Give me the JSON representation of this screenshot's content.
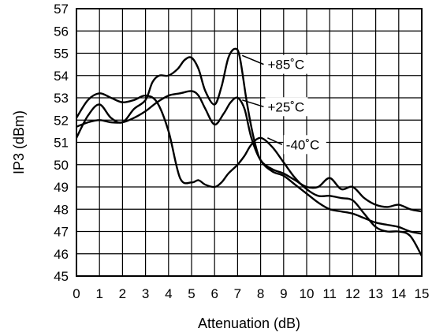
{
  "chart_data": {
    "type": "line",
    "title": "",
    "xlabel": "Attenuation (dB)",
    "ylabel": "IP3 (dBm)",
    "xlim": [
      0,
      15
    ],
    "ylim": [
      45,
      57
    ],
    "x_ticks": [
      "0",
      "1",
      "2",
      "3",
      "4",
      "5",
      "6",
      "7",
      "8",
      "9",
      "10",
      "11",
      "12",
      "13",
      "14",
      "15"
    ],
    "y_ticks": [
      "45",
      "46",
      "47",
      "48",
      "49",
      "50",
      "51",
      "52",
      "53",
      "54",
      "55",
      "56",
      "57"
    ],
    "grid": true,
    "series": [
      {
        "name": "+85˚C",
        "x": [
          0,
          0.5,
          1,
          1.5,
          2,
          2.5,
          3,
          3.3,
          3.6,
          4,
          4.4,
          4.7,
          5,
          5.3,
          5.6,
          6,
          6.3,
          6.6,
          6.9,
          7.1,
          7.4,
          7.7,
          8,
          8.5,
          9,
          9.5,
          10,
          10.5,
          11,
          11.5,
          12,
          12.5,
          13,
          13.5,
          14,
          14.5,
          15
        ],
        "y": [
          51.2,
          52.2,
          52.7,
          52.1,
          51.9,
          52.5,
          52.9,
          53.7,
          54.0,
          54.0,
          54.3,
          54.7,
          54.8,
          54.3,
          53.3,
          52.7,
          53.5,
          54.8,
          55.2,
          54.8,
          52.8,
          51.2,
          50.2,
          49.7,
          49.5,
          49.1,
          48.7,
          48.3,
          48.0,
          47.9,
          47.8,
          47.6,
          47.4,
          47.3,
          47.2,
          47.0,
          46.9
        ]
      },
      {
        "name": "+25˚C",
        "x": [
          0,
          0.5,
          1,
          1.5,
          2,
          2.5,
          3,
          3.5,
          4,
          4.5,
          5,
          5.3,
          5.6,
          6,
          6.3,
          6.6,
          7,
          7.3,
          7.6,
          8,
          8.5,
          9,
          9.5,
          10,
          10.5,
          11,
          11.5,
          12,
          12.5,
          13,
          13.5,
          14,
          14.5,
          15
        ],
        "y": [
          52.1,
          52.9,
          53.2,
          53.0,
          52.8,
          52.9,
          53.1,
          52.8,
          51.5,
          49.4,
          49.2,
          49.3,
          49.1,
          49.0,
          49.2,
          49.6,
          50.0,
          50.4,
          50.9,
          51.2,
          50.8,
          50.1,
          49.4,
          48.9,
          48.6,
          48.6,
          48.5,
          48.4,
          47.8,
          47.2,
          47.0,
          47.0,
          46.8,
          45.9
        ]
      },
      {
        "name": "-40˚C",
        "x": [
          0,
          0.5,
          1,
          1.5,
          2,
          2.5,
          3,
          3.5,
          4,
          4.5,
          5,
          5.3,
          5.6,
          6,
          6.4,
          6.7,
          7,
          7.3,
          7.6,
          8,
          8.5,
          9,
          9.5,
          10,
          10.5,
          11,
          11.5,
          12,
          12.5,
          13,
          13.5,
          14,
          14.5,
          15
        ],
        "y": [
          51.7,
          51.9,
          52.0,
          51.9,
          51.9,
          52.1,
          52.4,
          52.8,
          53.1,
          53.2,
          53.3,
          53.1,
          52.5,
          51.8,
          52.3,
          52.8,
          53.0,
          52.5,
          51.2,
          50.2,
          49.8,
          49.6,
          49.3,
          49.0,
          49.0,
          49.4,
          48.9,
          49.0,
          48.5,
          48.2,
          48.1,
          48.2,
          48.0,
          47.9
        ]
      }
    ],
    "annotations": [
      {
        "text": "+85˚C",
        "series": 0,
        "point_x": 7.2,
        "point_y": 54.9,
        "label_x": 8.2,
        "label_y": 54.5
      },
      {
        "text": "+25˚C",
        "series": 1,
        "point_x": 7.2,
        "point_y": 52.9,
        "label_x": 8.2,
        "label_y": 52.6
      },
      {
        "text": "-40˚C",
        "series": 2,
        "point_x": 8.3,
        "point_y": 51.2,
        "label_x": 9.0,
        "label_y": 50.9
      }
    ]
  }
}
